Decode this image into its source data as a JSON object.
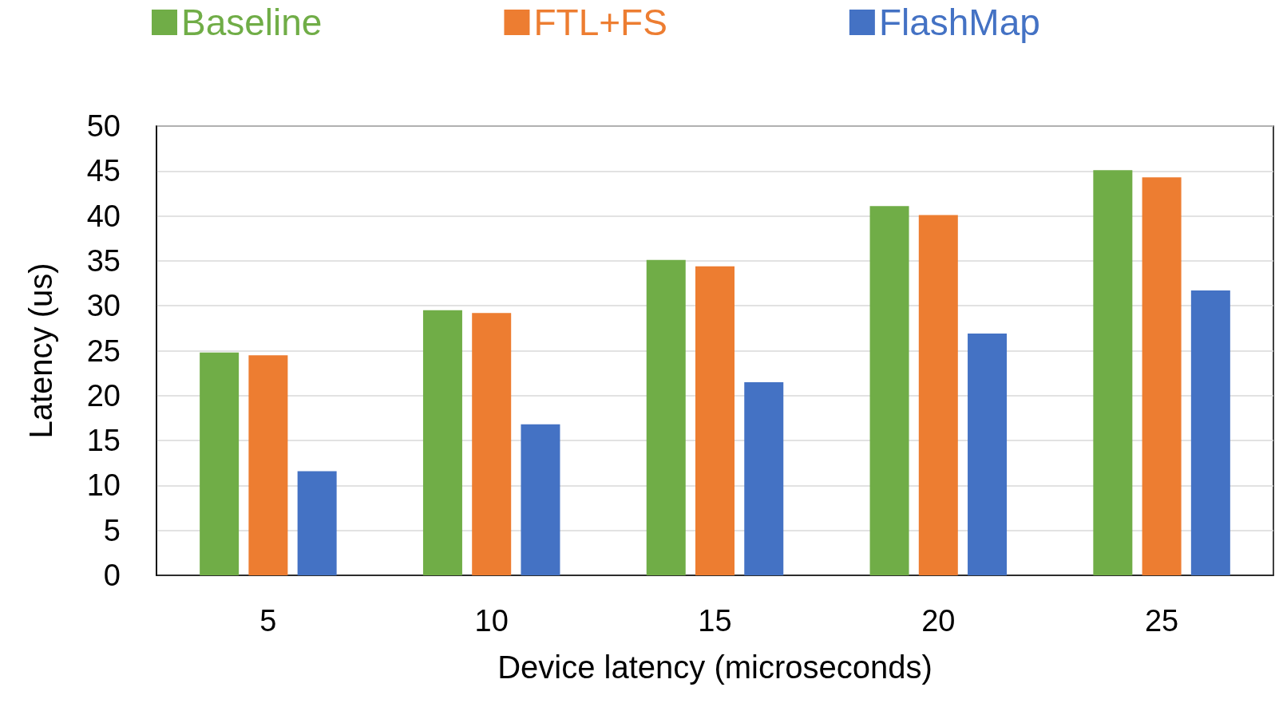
{
  "chart_data": {
    "type": "bar",
    "xlabel": "Device latency (microseconds)",
    "ylabel": "Latency (us)",
    "categories": [
      "5",
      "10",
      "15",
      "20",
      "25"
    ],
    "series": [
      {
        "name": "Baseline",
        "color": "#70ad47",
        "values": [
          24.8,
          29.5,
          35.1,
          41.1,
          45.1
        ]
      },
      {
        "name": "FTL+FS",
        "color": "#ed7d31",
        "values": [
          24.5,
          29.2,
          34.4,
          40.1,
          44.3
        ]
      },
      {
        "name": "FlashMap",
        "color": "#4472c4",
        "values": [
          11.6,
          16.8,
          21.5,
          26.9,
          31.7
        ]
      }
    ],
    "ylim": [
      0,
      50
    ],
    "yticks": [
      0,
      5,
      10,
      15,
      20,
      25,
      30,
      35,
      40,
      45,
      50
    ],
    "grid": "y",
    "legend": "top"
  }
}
